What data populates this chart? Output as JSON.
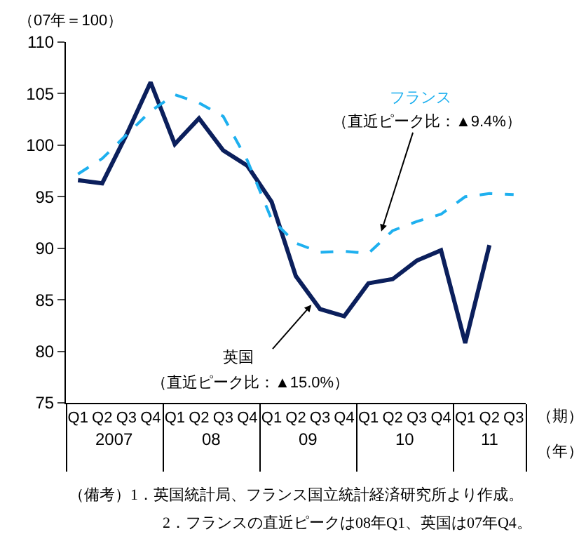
{
  "chart_data": {
    "type": "line",
    "categories": [
      "Q1",
      "Q2",
      "Q3",
      "Q4",
      "Q1",
      "Q2",
      "Q3",
      "Q4",
      "Q1",
      "Q2",
      "Q3",
      "Q4",
      "Q1",
      "Q2",
      "Q3",
      "Q4",
      "Q1",
      "Q2",
      "Q3"
    ],
    "series": [
      {
        "name": "英国",
        "color": "#0b1f5c",
        "line_style": "solid",
        "values": [
          96.6,
          96.3,
          101.0,
          106.1,
          100.1,
          102.6,
          99.5,
          98.0,
          94.5,
          87.3,
          84.1,
          83.4,
          86.6,
          87.0,
          88.8,
          89.8,
          80.8,
          90.3,
          null
        ]
      },
      {
        "name": "フランス",
        "color": "#1eb0ef",
        "line_style": "dashed",
        "values": [
          97.2,
          98.7,
          101.0,
          103.3,
          104.9,
          104.1,
          102.8,
          98.5,
          92.8,
          90.5,
          89.6,
          89.7,
          89.5,
          91.7,
          92.6,
          93.3,
          95.0,
          95.3,
          95.2
        ]
      }
    ],
    "ylim": [
      75,
      110
    ],
    "yticks": [
      75,
      80,
      85,
      90,
      95,
      100,
      105,
      110
    ],
    "grid": false,
    "legend": false,
    "marker": "none",
    "annotations": [
      "（07年＝100）",
      "2007",
      "08",
      "09",
      "10",
      "11",
      "（期）",
      "（年）",
      "（直近ピーク比：▲15.0%）",
      "（直近ピーク比：▲9.4%）",
      "（備考）1．英国統計局、フランス国立統計経済研究所より作成。",
      "2．フランスの直近ピークは08年Q1、英国は07年Q4。"
    ]
  }
}
